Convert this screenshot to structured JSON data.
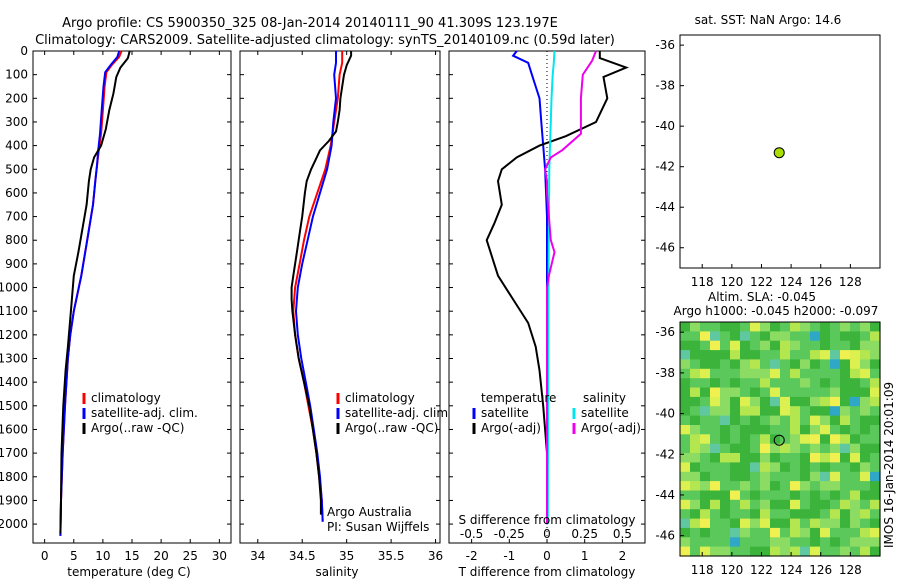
{
  "header": {
    "title_line1": "Argo profile: CS 5900350_325 08-Jan-2014 20140111_90 41.309S 123.197E",
    "title_line2": "Climatology: CARS2009. Satellite-adjusted climatology: synTS_20140109.nc (0.59d later)"
  },
  "colors": {
    "climatology": "#ff0000",
    "satellite": "#0000ff",
    "argo": "#000000",
    "salinity_satellite": "#00e5ee",
    "salinity_argo": "#ee00ee",
    "location_marker": "#aadd00"
  },
  "labels": {
    "temperature_xlabel": "temperature (deg C)",
    "salinity_xlabel": "salinity",
    "diff_xlabel_bottom": "T difference from climatology",
    "diff_xlabel_top": "S difference from climatology",
    "sst_title": "sat. SST: NaN Argo: 14.6",
    "sla_title1": "Altim. SLA: -0.045",
    "sla_title2": "Argo h1000: -0.045 h2000: -0.097",
    "credit": "Argo Australia",
    "pi": "PI: Susan Wijffels",
    "timestamp": "IMOS 16-Jan-2014 20:01:09"
  },
  "legend_profiles": [
    "climatology",
    "satellite-adj. clim.",
    "Argo(..raw -QC)"
  ],
  "legend_diff": {
    "temp_header": "temperature",
    "sal_header": "salinity",
    "temp_items": [
      "satellite",
      "Argo(-adj)"
    ],
    "sal_items": [
      "satellite",
      "Argo(-adj)"
    ]
  },
  "axes": {
    "depth_ticks": [
      "0",
      "100",
      "200",
      "300",
      "400",
      "500",
      "600",
      "700",
      "800",
      "900",
      "1000",
      "1100",
      "1200",
      "1300",
      "1400",
      "1500",
      "1600",
      "1700",
      "1800",
      "1900",
      "2000"
    ],
    "temp_ticks": [
      "0",
      "5",
      "10",
      "15",
      "20",
      "25",
      "30"
    ],
    "sal_ticks": [
      "34",
      "34.5",
      "35",
      "35.5",
      "36"
    ],
    "t_diff_ticks": [
      "-2",
      "-1",
      "0",
      "1",
      "2"
    ],
    "s_diff_ticks": [
      "-0.5",
      "-0.25",
      "0",
      "0.25",
      "0.5"
    ],
    "lat_ticks": [
      "-36",
      "-38",
      "-40",
      "-42",
      "-44",
      "-46"
    ],
    "lon_ticks": [
      "118",
      "120",
      "122",
      "124",
      "126",
      "128"
    ]
  },
  "chart_data": [
    {
      "type": "line",
      "name": "temperature",
      "xlabel": "temperature (deg C)",
      "ylabel": "",
      "xlim": [
        -2,
        32
      ],
      "ylim": [
        2080,
        0
      ],
      "series": [
        {
          "name": "climatology",
          "color": "#ff0000",
          "points": [
            [
              13.2,
              0
            ],
            [
              12.8,
              25
            ],
            [
              11.5,
              60
            ],
            [
              10.6,
              90
            ],
            [
              10.3,
              150
            ],
            [
              10.0,
              250
            ],
            [
              9.7,
              350
            ],
            [
              9.3,
              420
            ],
            [
              9.0,
              480
            ],
            [
              8.7,
              550
            ],
            [
              8.3,
              650
            ],
            [
              7.3,
              800
            ],
            [
              6.3,
              950
            ],
            [
              5.0,
              1100
            ],
            [
              4.4,
              1200
            ],
            [
              4.0,
              1300
            ],
            [
              3.5,
              1500
            ],
            [
              3.1,
              1700
            ],
            [
              2.8,
              1900
            ],
            [
              2.7,
              2050
            ]
          ]
        },
        {
          "name": "satellite-adj. clim.",
          "color": "#0000ff",
          "points": [
            [
              12.8,
              0
            ],
            [
              12.5,
              25
            ],
            [
              11.3,
              60
            ],
            [
              10.4,
              90
            ],
            [
              10.1,
              150
            ],
            [
              9.8,
              250
            ],
            [
              9.5,
              350
            ],
            [
              9.2,
              420
            ],
            [
              9.0,
              480
            ],
            [
              8.7,
              550
            ],
            [
              8.3,
              650
            ],
            [
              7.3,
              800
            ],
            [
              6.3,
              950
            ],
            [
              5.0,
              1100
            ],
            [
              4.4,
              1200
            ],
            [
              4.0,
              1300
            ],
            [
              3.5,
              1500
            ],
            [
              3.1,
              1700
            ],
            [
              2.8,
              1900
            ],
            [
              2.7,
              2050
            ]
          ]
        },
        {
          "name": "Argo(..raw -QC)",
          "color": "#000000",
          "points": [
            [
              14.6,
              0
            ],
            [
              14.3,
              30
            ],
            [
              13.0,
              70
            ],
            [
              12.3,
              110
            ],
            [
              11.8,
              180
            ],
            [
              11.1,
              250
            ],
            [
              10.5,
              330
            ],
            [
              9.7,
              400
            ],
            [
              8.5,
              450
            ],
            [
              7.9,
              500
            ],
            [
              7.6,
              550
            ],
            [
              7.2,
              650
            ],
            [
              6.5,
              750
            ],
            [
              5.8,
              850
            ],
            [
              5.0,
              950
            ],
            [
              4.5,
              1100
            ],
            [
              4.0,
              1250
            ],
            [
              3.6,
              1350
            ],
            [
              3.2,
              1500
            ],
            [
              2.9,
              1700
            ],
            [
              2.8,
              1900
            ],
            [
              2.7,
              2040
            ]
          ]
        }
      ]
    },
    {
      "type": "line",
      "name": "salinity",
      "xlabel": "salinity",
      "ylabel": "",
      "xlim": [
        33.8,
        36.05
      ],
      "ylim": [
        2080,
        0
      ],
      "series": [
        {
          "name": "climatology",
          "color": "#ff0000",
          "points": [
            [
              34.95,
              0
            ],
            [
              34.95,
              50
            ],
            [
              34.92,
              100
            ],
            [
              34.9,
              200
            ],
            [
              34.86,
              300
            ],
            [
              34.82,
              400
            ],
            [
              34.76,
              500
            ],
            [
              34.67,
              600
            ],
            [
              34.58,
              700
            ],
            [
              34.52,
              800
            ],
            [
              34.47,
              900
            ],
            [
              34.42,
              1000
            ],
            [
              34.4,
              1100
            ],
            [
              34.42,
              1200
            ],
            [
              34.46,
              1300
            ],
            [
              34.52,
              1400
            ],
            [
              34.57,
              1500
            ],
            [
              34.62,
              1600
            ],
            [
              34.66,
              1700
            ],
            [
              34.69,
              1800
            ],
            [
              34.72,
              1900
            ],
            [
              34.73,
              1990
            ]
          ]
        },
        {
          "name": "satellite-adj. clim.",
          "color": "#0000ff",
          "points": [
            [
              34.88,
              0
            ],
            [
              34.88,
              50
            ],
            [
              34.86,
              100
            ],
            [
              34.88,
              200
            ],
            [
              34.85,
              300
            ],
            [
              34.83,
              400
            ],
            [
              34.78,
              500
            ],
            [
              34.7,
              600
            ],
            [
              34.62,
              700
            ],
            [
              34.56,
              800
            ],
            [
              34.5,
              900
            ],
            [
              34.45,
              1000
            ],
            [
              34.43,
              1100
            ],
            [
              34.45,
              1200
            ],
            [
              34.49,
              1300
            ],
            [
              34.54,
              1400
            ],
            [
              34.59,
              1500
            ],
            [
              34.63,
              1600
            ],
            [
              34.67,
              1700
            ],
            [
              34.7,
              1800
            ],
            [
              34.72,
              1900
            ],
            [
              34.73,
              1990
            ]
          ]
        },
        {
          "name": "Argo(..raw -QC)",
          "color": "#000000",
          "points": [
            [
              35.05,
              0
            ],
            [
              35.05,
              20
            ],
            [
              35.0,
              60
            ],
            [
              34.97,
              100
            ],
            [
              34.95,
              150
            ],
            [
              34.93,
              200
            ],
            [
              34.92,
              250
            ],
            [
              34.9,
              300
            ],
            [
              34.88,
              340
            ],
            [
              34.8,
              380
            ],
            [
              34.7,
              420
            ],
            [
              34.65,
              460
            ],
            [
              34.6,
              500
            ],
            [
              34.55,
              550
            ],
            [
              34.53,
              600
            ],
            [
              34.5,
              700
            ],
            [
              34.48,
              750
            ],
            [
              34.44,
              850
            ],
            [
              34.4,
              950
            ],
            [
              34.38,
              1000
            ],
            [
              34.38,
              1050
            ],
            [
              34.39,
              1100
            ],
            [
              34.42,
              1200
            ],
            [
              34.46,
              1300
            ],
            [
              34.52,
              1400
            ],
            [
              34.58,
              1500
            ],
            [
              34.62,
              1600
            ],
            [
              34.66,
              1700
            ],
            [
              34.69,
              1800
            ],
            [
              34.71,
              1900
            ],
            [
              34.71,
              1960
            ]
          ]
        }
      ]
    },
    {
      "type": "line",
      "name": "difference",
      "xlabel": "T difference from climatology",
      "xlabel_top": "S difference from climatology",
      "xlim": [
        -2.6,
        2.6
      ],
      "ylim": [
        2080,
        0
      ],
      "series": [
        {
          "name": "temperature satellite",
          "color": "#0000ff",
          "points": [
            [
              -0.8,
              0
            ],
            [
              -0.9,
              20
            ],
            [
              -0.5,
              50
            ],
            [
              -0.4,
              100
            ],
            [
              -0.3,
              150
            ],
            [
              -0.2,
              200
            ],
            [
              -0.15,
              300
            ],
            [
              -0.1,
              400
            ],
            [
              -0.05,
              500
            ],
            [
              0,
              700
            ],
            [
              0,
              1000
            ],
            [
              0,
              1500
            ],
            [
              0,
              2000
            ]
          ]
        },
        {
          "name": "temperature Argo(-adj)",
          "color": "#000000",
          "points": [
            [
              1.4,
              0
            ],
            [
              1.4,
              30
            ],
            [
              2.1,
              70
            ],
            [
              1.5,
              110
            ],
            [
              1.6,
              200
            ],
            [
              1.3,
              300
            ],
            [
              0.5,
              360
            ],
            [
              -0.2,
              400
            ],
            [
              -0.8,
              450
            ],
            [
              -1.2,
              500
            ],
            [
              -1.3,
              550
            ],
            [
              -1.2,
              650
            ],
            [
              -1.4,
              730
            ],
            [
              -1.6,
              800
            ],
            [
              -1.5,
              850
            ],
            [
              -1.3,
              950
            ],
            [
              -0.9,
              1050
            ],
            [
              -0.5,
              1150
            ],
            [
              -0.3,
              1250
            ],
            [
              -0.2,
              1350
            ],
            [
              -0.1,
              1500
            ],
            [
              0,
              1700
            ],
            [
              0,
              2000
            ]
          ]
        },
        {
          "name": "salinity satellite",
          "color": "#00e5ee",
          "points": [
            [
              0.2,
              0
            ],
            [
              0.18,
              50
            ],
            [
              0.15,
              100
            ],
            [
              0.12,
              200
            ],
            [
              0.1,
              300
            ],
            [
              0.08,
              400
            ],
            [
              0.06,
              500
            ],
            [
              0.05,
              700
            ],
            [
              0.04,
              1000
            ],
            [
              0.03,
              1500
            ],
            [
              0.02,
              2000
            ]
          ]
        },
        {
          "name": "salinity Argo(-adj)",
          "color": "#ee00ee",
          "points": [
            [
              1.3,
              0
            ],
            [
              1.2,
              40
            ],
            [
              0.95,
              100
            ],
            [
              0.9,
              200
            ],
            [
              0.9,
              350
            ],
            [
              0.4,
              420
            ],
            [
              0.1,
              450
            ],
            [
              -0.05,
              500
            ],
            [
              0,
              550
            ],
            [
              0,
              600
            ],
            [
              0.05,
              700
            ],
            [
              0.1,
              800
            ],
            [
              0.2,
              850
            ],
            [
              0.05,
              950
            ],
            [
              0,
              1000
            ],
            [
              0,
              1500
            ],
            [
              0,
              2000
            ]
          ]
        }
      ]
    },
    {
      "type": "scatter",
      "name": "sst_location",
      "title": "sat. SST: NaN Argo: 14.6",
      "xlim": [
        116.5,
        130
      ],
      "ylim": [
        -47,
        -35.5
      ],
      "points": [
        [
          123.197,
          -41.309
        ]
      ]
    },
    {
      "type": "heatmap",
      "name": "sla_map",
      "title": "Altim. SLA: -0.045",
      "subtitle": "Argo h1000: -0.045 h2000: -0.097",
      "xlim": [
        116.5,
        130
      ],
      "ylim": [
        -47,
        -35.5
      ],
      "points": [
        [
          123.197,
          -41.309
        ]
      ]
    }
  ]
}
